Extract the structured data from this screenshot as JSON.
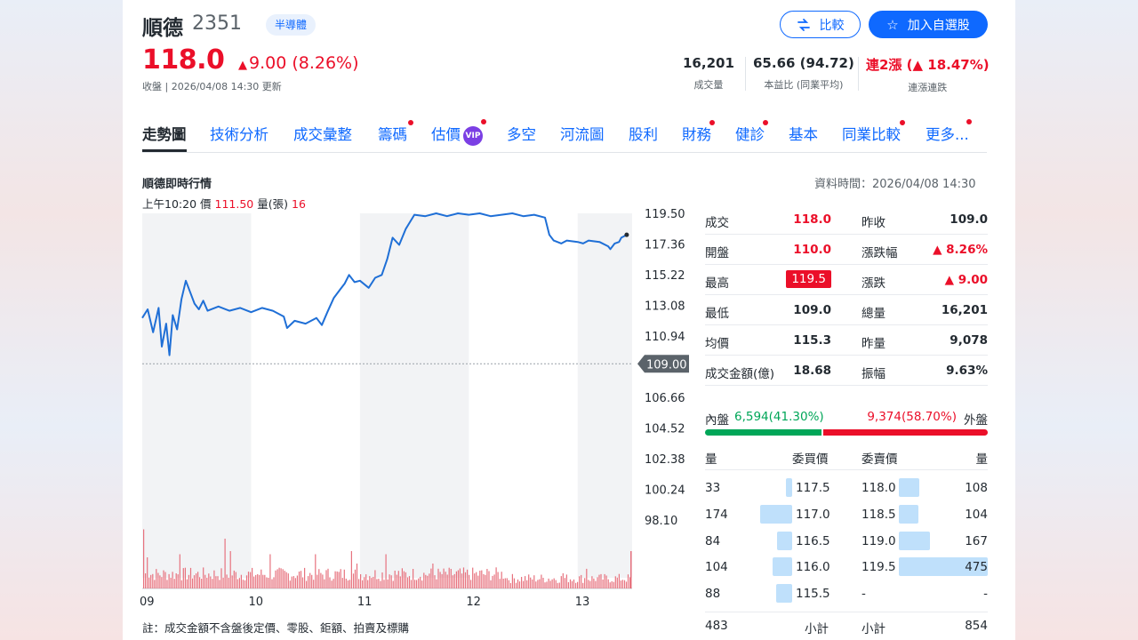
{
  "header": {
    "name": "順德",
    "code": "2351",
    "tag": "半導體",
    "price": "118.0",
    "change": "9.00 (8.26%)",
    "close_note": "收盤 | 2026/04/08 14:30 更新",
    "compare_label": "比較",
    "watchlist_label": "加入自選股"
  },
  "stats": [
    {
      "value": "16,201",
      "label": "成交量"
    },
    {
      "value": "65.66 (94.72)",
      "label": "本益比 (同業平均)"
    },
    {
      "value": "連2漲 (▲ 18.47%)",
      "label": "連漲連跌"
    }
  ],
  "tabs": [
    {
      "label": "走勢圖"
    },
    {
      "label": "技術分析"
    },
    {
      "label": "成交彙整"
    },
    {
      "label": "籌碼"
    },
    {
      "label": "估價",
      "badge": "VIP"
    },
    {
      "label": "多空"
    },
    {
      "label": "河流圖"
    },
    {
      "label": "股利"
    },
    {
      "label": "財務"
    },
    {
      "label": "健診"
    },
    {
      "label": "基本"
    },
    {
      "label": "同業比較"
    },
    {
      "label": "更多..."
    }
  ],
  "section": {
    "title": "順德即時行情",
    "data_time": "資料時間：2026/04/08 14:30",
    "tick_time": "上午10:20",
    "tick_price_label": "價",
    "tick_price": "111.50",
    "tick_vol_label": "量(張)",
    "tick_vol": "16"
  },
  "chart_data": {
    "type": "line",
    "x_ticks": [
      "09",
      "10",
      "11",
      "12",
      "13"
    ],
    "y_ticks": [
      "119.50",
      "117.36",
      "115.22",
      "113.08",
      "110.94",
      "109.00",
      "106.66",
      "104.52",
      "102.38",
      "100.24",
      "98.10"
    ],
    "ylim": [
      98.1,
      119.5
    ],
    "reference_price": 109.0,
    "reference_label": "109.00",
    "price_series": [
      [
        9.0,
        112.2
      ],
      [
        9.05,
        112.8
      ],
      [
        9.1,
        111.2
      ],
      [
        9.15,
        112.9
      ],
      [
        9.18,
        110.2
      ],
      [
        9.22,
        111.8
      ],
      [
        9.25,
        109.6
      ],
      [
        9.28,
        112.4
      ],
      [
        9.32,
        111.4
      ],
      [
        9.36,
        113.5
      ],
      [
        9.4,
        114.8
      ],
      [
        9.44,
        114.0
      ],
      [
        9.48,
        113.2
      ],
      [
        9.52,
        112.8
      ],
      [
        9.56,
        113.4
      ],
      [
        9.6,
        112.7
      ],
      [
        9.7,
        113.0
      ],
      [
        9.8,
        112.7
      ],
      [
        9.9,
        112.9
      ],
      [
        10.0,
        112.6
      ],
      [
        10.1,
        112.9
      ],
      [
        10.2,
        112.7
      ],
      [
        10.3,
        112.3
      ],
      [
        10.33,
        111.5
      ],
      [
        10.4,
        112.0
      ],
      [
        10.5,
        111.8
      ],
      [
        10.6,
        112.2
      ],
      [
        10.65,
        111.7
      ],
      [
        10.7,
        112.6
      ],
      [
        10.76,
        113.6
      ],
      [
        10.82,
        114.2
      ],
      [
        10.86,
        114.6
      ],
      [
        10.9,
        115.2
      ],
      [
        10.95,
        114.7
      ],
      [
        11.0,
        114.8
      ],
      [
        11.08,
        114.3
      ],
      [
        11.14,
        115.0
      ],
      [
        11.2,
        115.2
      ],
      [
        11.25,
        116.3
      ],
      [
        11.3,
        117.8
      ],
      [
        11.36,
        117.3
      ],
      [
        11.42,
        118.4
      ],
      [
        11.5,
        119.4
      ],
      [
        11.6,
        119.3
      ],
      [
        11.7,
        119.5
      ],
      [
        11.8,
        119.3
      ],
      [
        11.9,
        119.5
      ],
      [
        12.0,
        119.4
      ],
      [
        12.1,
        119.5
      ],
      [
        12.2,
        119.3
      ],
      [
        12.3,
        119.4
      ],
      [
        12.4,
        119.5
      ],
      [
        12.5,
        119.3
      ],
      [
        12.6,
        119.4
      ],
      [
        12.7,
        119.2
      ],
      [
        12.74,
        118.0
      ],
      [
        12.78,
        117.6
      ],
      [
        12.85,
        117.4
      ],
      [
        12.9,
        117.6
      ],
      [
        13.0,
        117.5
      ],
      [
        13.05,
        117.4
      ],
      [
        13.1,
        117.6
      ],
      [
        13.2,
        117.5
      ],
      [
        13.28,
        117.2
      ],
      [
        13.3,
        117.0
      ],
      [
        13.34,
        117.4
      ],
      [
        13.38,
        117.5
      ],
      [
        13.4,
        117.8
      ],
      [
        13.45,
        118.0
      ]
    ],
    "volume_note": "volume bars per minute (sparse spikes)"
  },
  "quote": {
    "rows": [
      {
        "l1": "成交",
        "v1": "118.0",
        "l2": "昨收",
        "v2": "109.0"
      },
      {
        "l1": "開盤",
        "v1": "110.0",
        "l2": "漲跌幅",
        "v2": "▲ 8.26%"
      },
      {
        "l1": "最高",
        "v1": "119.5",
        "l2": "漲跌",
        "v2": "▲ 9.00"
      },
      {
        "l1": "最低",
        "v1": "109.0",
        "l2": "總量",
        "v2": "16,201"
      },
      {
        "l1": "均價",
        "v1": "115.3",
        "l2": "昨量",
        "v2": "9,078"
      },
      {
        "l1": "成交金額(億)",
        "v1": "18.68",
        "l2": "振幅",
        "v2": "9.63%"
      }
    ]
  },
  "inner_outer": {
    "inner_label": "內盤",
    "inner_value": "6,594",
    "inner_pct": "(41.30%)",
    "outer_value": "9,374",
    "outer_pct": "(58.70%)",
    "outer_label": "外盤",
    "inner_fraction": 0.413
  },
  "orderbook": {
    "headers": {
      "bid_qty": "量",
      "bid_price": "委買價",
      "ask_price": "委賣價",
      "ask_qty": "量"
    },
    "rows": [
      {
        "bq": "33",
        "bp": "117.5",
        "sp": "118.0",
        "sq": "108",
        "bq_n": 33,
        "sq_n": 108
      },
      {
        "bq": "174",
        "bp": "117.0",
        "sp": "118.5",
        "sq": "104",
        "bq_n": 174,
        "sq_n": 104
      },
      {
        "bq": "84",
        "bp": "116.5",
        "sp": "119.0",
        "sq": "167",
        "bq_n": 84,
        "sq_n": 167
      },
      {
        "bq": "104",
        "bp": "116.0",
        "sp": "119.5",
        "sq": "475",
        "bq_n": 104,
        "sq_n": 475
      },
      {
        "bq": "88",
        "bp": "115.5",
        "sp": "-",
        "sq": "-",
        "bq_n": 88,
        "sq_n": 0
      }
    ],
    "subtotal": {
      "bid": "483",
      "bid_label": "小計",
      "ask_label": "小計",
      "ask": "854"
    }
  },
  "footnote": "註：成交金額不含盤後定價、零股、鉅額、拍賣及標購"
}
